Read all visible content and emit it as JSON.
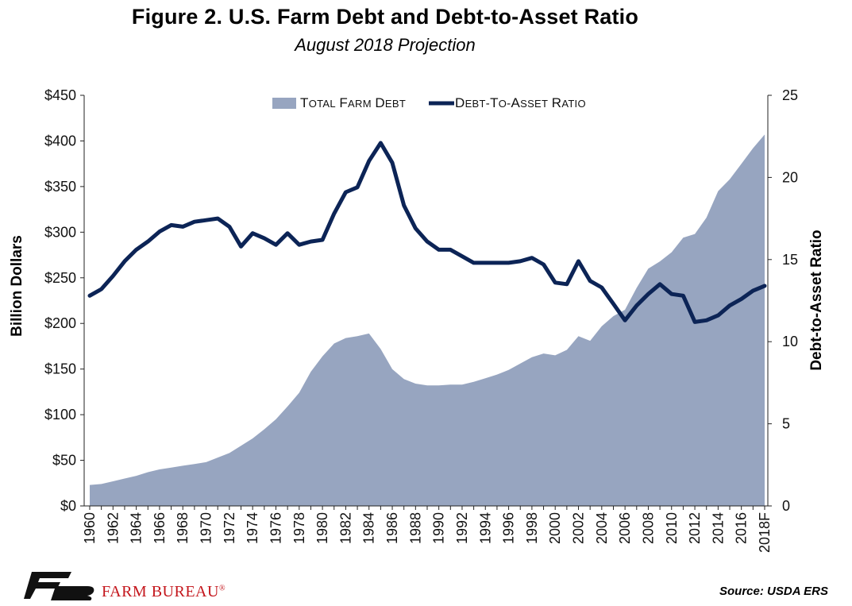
{
  "title": "Figure 2. U.S. Farm Debt and Debt-to-Asset Ratio",
  "subtitle": "August 2018 Projection",
  "footer": {
    "brand": "FARM BUREAU",
    "brand_mark": "®",
    "source": "Source: USDA ERS",
    "logo_icon": "farm-bureau-logo"
  },
  "colors": {
    "area": "#97a5c0",
    "line": "#0c2456"
  },
  "chart_data": {
    "type": "area",
    "xlabel": "",
    "ylabel": "Billion Dollars",
    "y2label": "Debt-to-Asset Ratio",
    "ylim": [
      0,
      450
    ],
    "y2lim": [
      0,
      25
    ],
    "yticks": [
      "$0",
      "$50",
      "$100",
      "$150",
      "$200",
      "$250",
      "$300",
      "$350",
      "$400",
      "$450"
    ],
    "y2ticks": [
      "0",
      "5",
      "10",
      "15",
      "20",
      "25"
    ],
    "legend_position": "top-center",
    "x": [
      "1960",
      "1961",
      "1962",
      "1963",
      "1964",
      "1965",
      "1966",
      "1967",
      "1968",
      "1969",
      "1970",
      "1971",
      "1972",
      "1973",
      "1974",
      "1975",
      "1976",
      "1977",
      "1978",
      "1979",
      "1980",
      "1981",
      "1982",
      "1983",
      "1984",
      "1985",
      "1986",
      "1987",
      "1988",
      "1989",
      "1990",
      "1991",
      "1992",
      "1993",
      "1994",
      "1995",
      "1996",
      "1997",
      "1998",
      "1999",
      "2000",
      "2001",
      "2002",
      "2003",
      "2004",
      "2005",
      "2006",
      "2007",
      "2008",
      "2009",
      "2010",
      "2011",
      "2012",
      "2013",
      "2014",
      "2015",
      "2016",
      "2017",
      "2018F"
    ],
    "xtick_labels": [
      "1960",
      "1962",
      "1964",
      "1966",
      "1968",
      "1970",
      "1972",
      "1974",
      "1976",
      "1978",
      "1980",
      "1982",
      "1984",
      "1986",
      "1988",
      "1990",
      "1992",
      "1994",
      "1996",
      "1998",
      "2000",
      "2002",
      "2004",
      "2006",
      "2008",
      "2010",
      "2012",
      "2014",
      "2016",
      "2018F"
    ],
    "series": [
      {
        "name": "Total Farm Debt",
        "axis": "left",
        "kind": "area",
        "values": [
          23,
          24,
          27,
          30,
          33,
          37,
          40,
          42,
          44,
          46,
          48,
          53,
          58,
          66,
          74,
          84,
          95,
          109,
          124,
          147,
          164,
          178,
          184,
          186,
          189,
          172,
          150,
          139,
          134,
          132,
          132,
          133,
          133,
          136,
          140,
          144,
          149,
          156,
          163,
          167,
          165,
          171,
          186,
          181,
          197,
          208,
          215,
          239,
          260,
          268,
          278,
          294,
          298,
          316,
          345,
          358,
          375,
          392,
          407
        ]
      },
      {
        "name": "Debt-to-Asset Ratio",
        "axis": "right",
        "kind": "line",
        "values": [
          12.8,
          13.2,
          14.0,
          14.9,
          15.6,
          16.1,
          16.7,
          17.1,
          17.0,
          17.3,
          17.4,
          17.5,
          17.0,
          15.8,
          16.6,
          16.3,
          15.9,
          16.6,
          15.9,
          16.1,
          16.2,
          17.8,
          19.1,
          19.4,
          21.0,
          22.1,
          20.9,
          18.3,
          16.9,
          16.1,
          15.6,
          15.6,
          15.2,
          14.8,
          14.8,
          14.8,
          14.8,
          14.9,
          15.1,
          14.7,
          13.6,
          13.5,
          14.9,
          13.7,
          13.3,
          12.3,
          11.3,
          12.2,
          12.9,
          13.5,
          12.9,
          12.8,
          11.2,
          11.3,
          11.6,
          12.2,
          12.6,
          13.1,
          13.4
        ]
      }
    ]
  }
}
